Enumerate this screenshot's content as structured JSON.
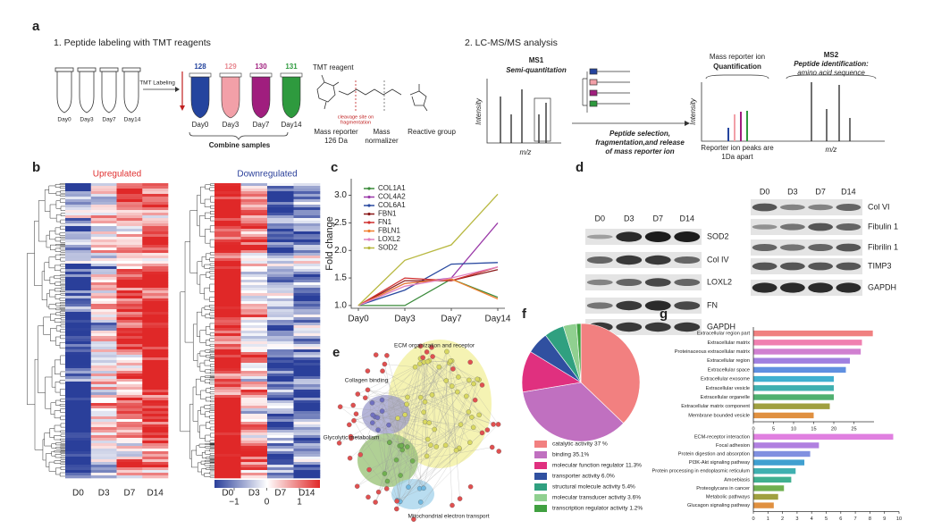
{
  "panel_a": {
    "letter": "a",
    "step1": "1. Peptide labeling with TMT reagents",
    "tube_labels": [
      "Day0",
      "Day3",
      "Day7",
      "Day14"
    ],
    "tmt_labeling": "TMT Labeling",
    "channels": [
      "128",
      "129",
      "130",
      "131"
    ],
    "channel_days": [
      "Day0",
      "Day3",
      "Day7",
      "Day14"
    ],
    "combine": "Combine samples",
    "reagent_title": "TMT reagent",
    "cleavage": [
      "cleavage site on",
      "fragmentation"
    ],
    "reporter": [
      "Mass reporter",
      "126 Da"
    ],
    "normalizer": [
      "Mass",
      "normalizer"
    ],
    "reactive": "Reactive group",
    "step2": "2. LC-MS/MS analysis",
    "ms1": "MS1",
    "ms1_sub": "Semi-quantitation",
    "intensity": "Intensity",
    "mz": "m/z",
    "selection": [
      "Peptide selection,",
      "fragmentation,and release",
      "of mass reporter ion"
    ],
    "reporter_ion": "Mass reporter ion",
    "quantification": "Quantification",
    "ms2": "MS2",
    "ms2_sub": "Peptide identification:",
    "ms2_sub2": "amino acid sequence",
    "reporter_note": [
      "Reporter ion peaks are",
      "1Da apart"
    ],
    "intensity2": "Intensity",
    "mz2": "m/z"
  },
  "panel_b": {
    "letter": "b",
    "up": "Upregulated",
    "down": "Downregulated",
    "samples_up": [
      "D0",
      "D3",
      "D7",
      "D14"
    ],
    "samples_down": [
      "D0",
      "D3",
      "D7",
      "D14"
    ],
    "colorbar_ticks": [
      {
        "value": -1,
        "label": "−1"
      },
      0,
      1
    ]
  },
  "panel_d": {
    "letter": "d",
    "left_lanes": [
      "D0",
      "D3",
      "D7",
      "D14"
    ],
    "left_rows": [
      "SOD2",
      "Col IV",
      "LOXL2",
      "FN",
      "GAPDH"
    ],
    "right_lanes": [
      "D0",
      "D3",
      "D7",
      "D14"
    ],
    "right_rows": [
      "Col VI",
      "Fibulin 1",
      "Fibrilin 1",
      "TIMP3",
      "GAPDH"
    ]
  },
  "panel_e": {
    "letter": "e",
    "clusters": [
      "ECM organization and receptor",
      "Collagen binding",
      "Glycolytic metabolism",
      "Mitochondrial electron transport"
    ]
  },
  "chart_data": [
    {
      "type": "line",
      "panel_label": "c",
      "ylabel": "Fold change",
      "categories": [
        "Day0",
        "Day3",
        "Day7",
        "Day14"
      ],
      "ylim": [
        0.95,
        3.3
      ],
      "yticks": [
        {
          "value": 1,
          "label": "1.0"
        },
        1.5,
        {
          "value": 2,
          "label": "2.0"
        },
        2.5,
        {
          "value": 3,
          "label": "3.0"
        }
      ],
      "series": [
        {
          "name": "COL1A1",
          "color": "#3a8a3a",
          "values": [
            1,
            1.0,
            1.48,
            1.15
          ]
        },
        {
          "name": "COL4A2",
          "color": "#9a3aa8",
          "values": [
            1,
            1.4,
            1.5,
            2.5
          ]
        },
        {
          "name": "COL6A1",
          "color": "#2a4aa0",
          "values": [
            1,
            1.28,
            1.75,
            1.78
          ]
        },
        {
          "name": "FBN1",
          "color": "#8b1a1a",
          "values": [
            1,
            1.45,
            1.45,
            1.65
          ]
        },
        {
          "name": "FN1",
          "color": "#d03030",
          "values": [
            1,
            1.5,
            1.45,
            1.7
          ]
        },
        {
          "name": "FBLN1",
          "color": "#f08030",
          "values": [
            1,
            1.4,
            1.48,
            1.12
          ]
        },
        {
          "name": "LOXL2",
          "color": "#e080c0",
          "values": [
            1,
            1.35,
            1.5,
            1.7
          ]
        },
        {
          "name": "SOD2",
          "color": "#b8b840",
          "values": [
            1,
            1.82,
            2.1,
            3.02
          ]
        }
      ]
    },
    {
      "type": "pie",
      "panel_label": "f",
      "categories": [
        "catalytic activity 37 %",
        "binding 35.1%",
        "molecular function regulator 11.3%",
        "transporter activity 6.0%",
        "structural molecule activity 5.4%",
        "molecular transducer activity 3.6%",
        "transcription regulator activity 1.2%"
      ],
      "values": [
        37,
        35.1,
        11.3,
        6.0,
        5.4,
        3.6,
        1.2
      ],
      "colors": [
        "#f28080",
        "#c070c0",
        "#e0307f",
        "#3050a0",
        "#30a080",
        "#90d090",
        "#40a040"
      ]
    },
    {
      "type": "bar",
      "panel_label": "g",
      "orientation": "horizontal",
      "categories": [
        "Extracellular region part",
        "Extracellular matrix",
        "Proteinaceous extracellular matrix",
        "Extracellular region",
        "Extracellular space",
        "Extracellular exosome",
        "Extracellular vesicle",
        "Extracellular organelle",
        "Extracellular matrix component",
        "Membrane bounded vesicle"
      ],
      "values": [
        29.7,
        27,
        26.7,
        24,
        23,
        20,
        20,
        20,
        19,
        15
      ],
      "colors": [
        "#f08080",
        "#f080b0",
        "#d080d0",
        "#a080e0",
        "#6090e0",
        "#40b0d0",
        "#40b0b0",
        "#50b070",
        "#a0a040",
        "#e09040"
      ],
      "xlim": [
        0,
        30
      ],
      "xticks": [
        0,
        5,
        10,
        15,
        20,
        25
      ]
    },
    {
      "type": "bar",
      "orientation": "horizontal",
      "categories": [
        "ECM-receptor interaction",
        "Focal adhesion",
        "Protein digestion and absorption",
        "PI3K-Akt signaling pathway",
        "Protein processing in endoplasmic reticulum",
        "Amoebiasis",
        "Proteoglycans in cancer",
        "Metabolic pathways",
        "Glucagon signaling pathway"
      ],
      "values": [
        9.6,
        4.5,
        3.9,
        3.5,
        2.9,
        2.6,
        2.1,
        1.7,
        1.4
      ],
      "colors": [
        "#e080e0",
        "#b080e0",
        "#8090e0",
        "#40a0d0",
        "#40b0b0",
        "#40b090",
        "#70b050",
        "#a0a040",
        "#e09040"
      ],
      "xlim": [
        0,
        10
      ],
      "xticks": [
        0,
        1,
        2,
        3,
        4,
        5,
        6,
        7,
        8,
        9,
        10
      ]
    }
  ]
}
